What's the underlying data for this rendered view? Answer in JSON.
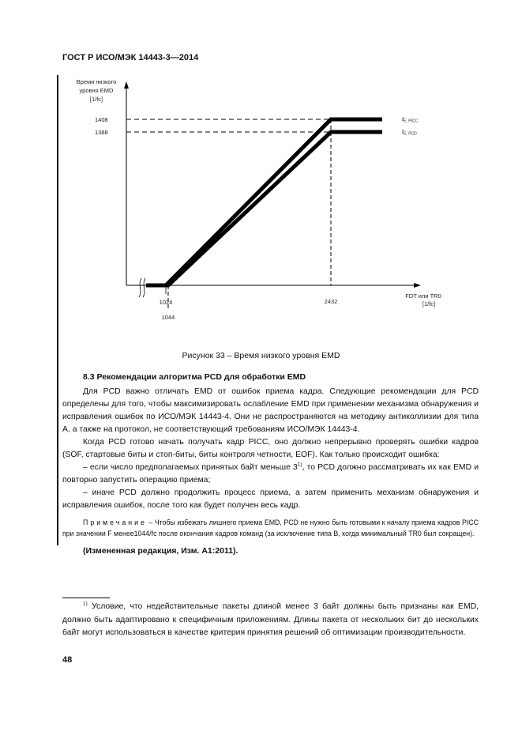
{
  "header": {
    "title": "ГОСТ Р ИСО/МЭК 14443-3—2014"
  },
  "chart_data": {
    "type": "line",
    "ylabel_lines": [
      "Время низкого",
      "уровня EMD",
      "[1/fc]"
    ],
    "xlabel_lines": [
      "FDT или TR0",
      "[1/fc]"
    ],
    "y_ticks": [
      "1408",
      "1388"
    ],
    "x_ticks": [
      "1024",
      "1044",
      "2432"
    ],
    "series": [
      {
        "name": "tE, PICC",
        "name_main": "t",
        "name_sub": "E, PICC",
        "points": [
          [
            1024,
            0
          ],
          [
            2432,
            1408
          ]
        ],
        "plateau": 1408
      },
      {
        "name": "tE, PCD",
        "name_main": "t",
        "name_sub": "E, PCD",
        "points": [
          [
            1044,
            0
          ],
          [
            2432,
            1388
          ]
        ],
        "plateau": 1388
      }
    ],
    "axis_break": true,
    "grid": false
  },
  "figure": {
    "caption": "Рисунок 33 – Время низкого уровня EMD"
  },
  "section": {
    "title": "8.3 Рекомендации алгоритма PCD для обработки EMD",
    "p1": "Для PCD важно отличать EMD от ошибок приема кадра. Следующие рекомендации для PCD определены для того, чтобы максимизировать ослабление EMD при применении механизма обнаружения и исправления ошибок по ИСО/МЭК 14443-4. Они не распространяются на методику антиколлизии для типа А, а также на протокол, не соответствующий требованиям ИСО/МЭК 14443-4.",
    "p2": "Когда PCD готово начать получать кадр PICC, оно должно непрерывно проверять ошибки кадров (SOF, стартовые биты и стоп-биты, биты контроля четности, EOF). Как только происходит ошибка:",
    "p3a": "– если число предполагаемых принятых байт меньше 3",
    "p3sup": "1)",
    "p3b": ", то PCD должно рассматривать их как EMD и повторно запустить операцию приема;",
    "p4": "– иначе PCD должно продолжить процесс приема, а затем применить механизм обнаружения и исправления ошибок, после того как будет получен весь кадр.",
    "note_label": "Примечание",
    "note_text": " – Чтобы избежать лишнего приема EMD, PCD не нужно быть готовыми к началу приема кадров PICC при значении F менее1044/fc после окончания кадров команд (за исключение типа В, когда минимальный TR0 был сокращен).",
    "amendment": "(Измененная редакция, Изм. А1:2011)."
  },
  "footnote": {
    "mark": "1)",
    "text": " Условие, что недействительные пакеты длиной менее 3 байт должны быть признаны как EMD, должно быть адаптировано к специфичным приложениям. Длины пакета от нескольких бит до нескольких байт могут использоваться в качестве критерия принятия решений об оптимизации производительности."
  },
  "page_number": "48"
}
